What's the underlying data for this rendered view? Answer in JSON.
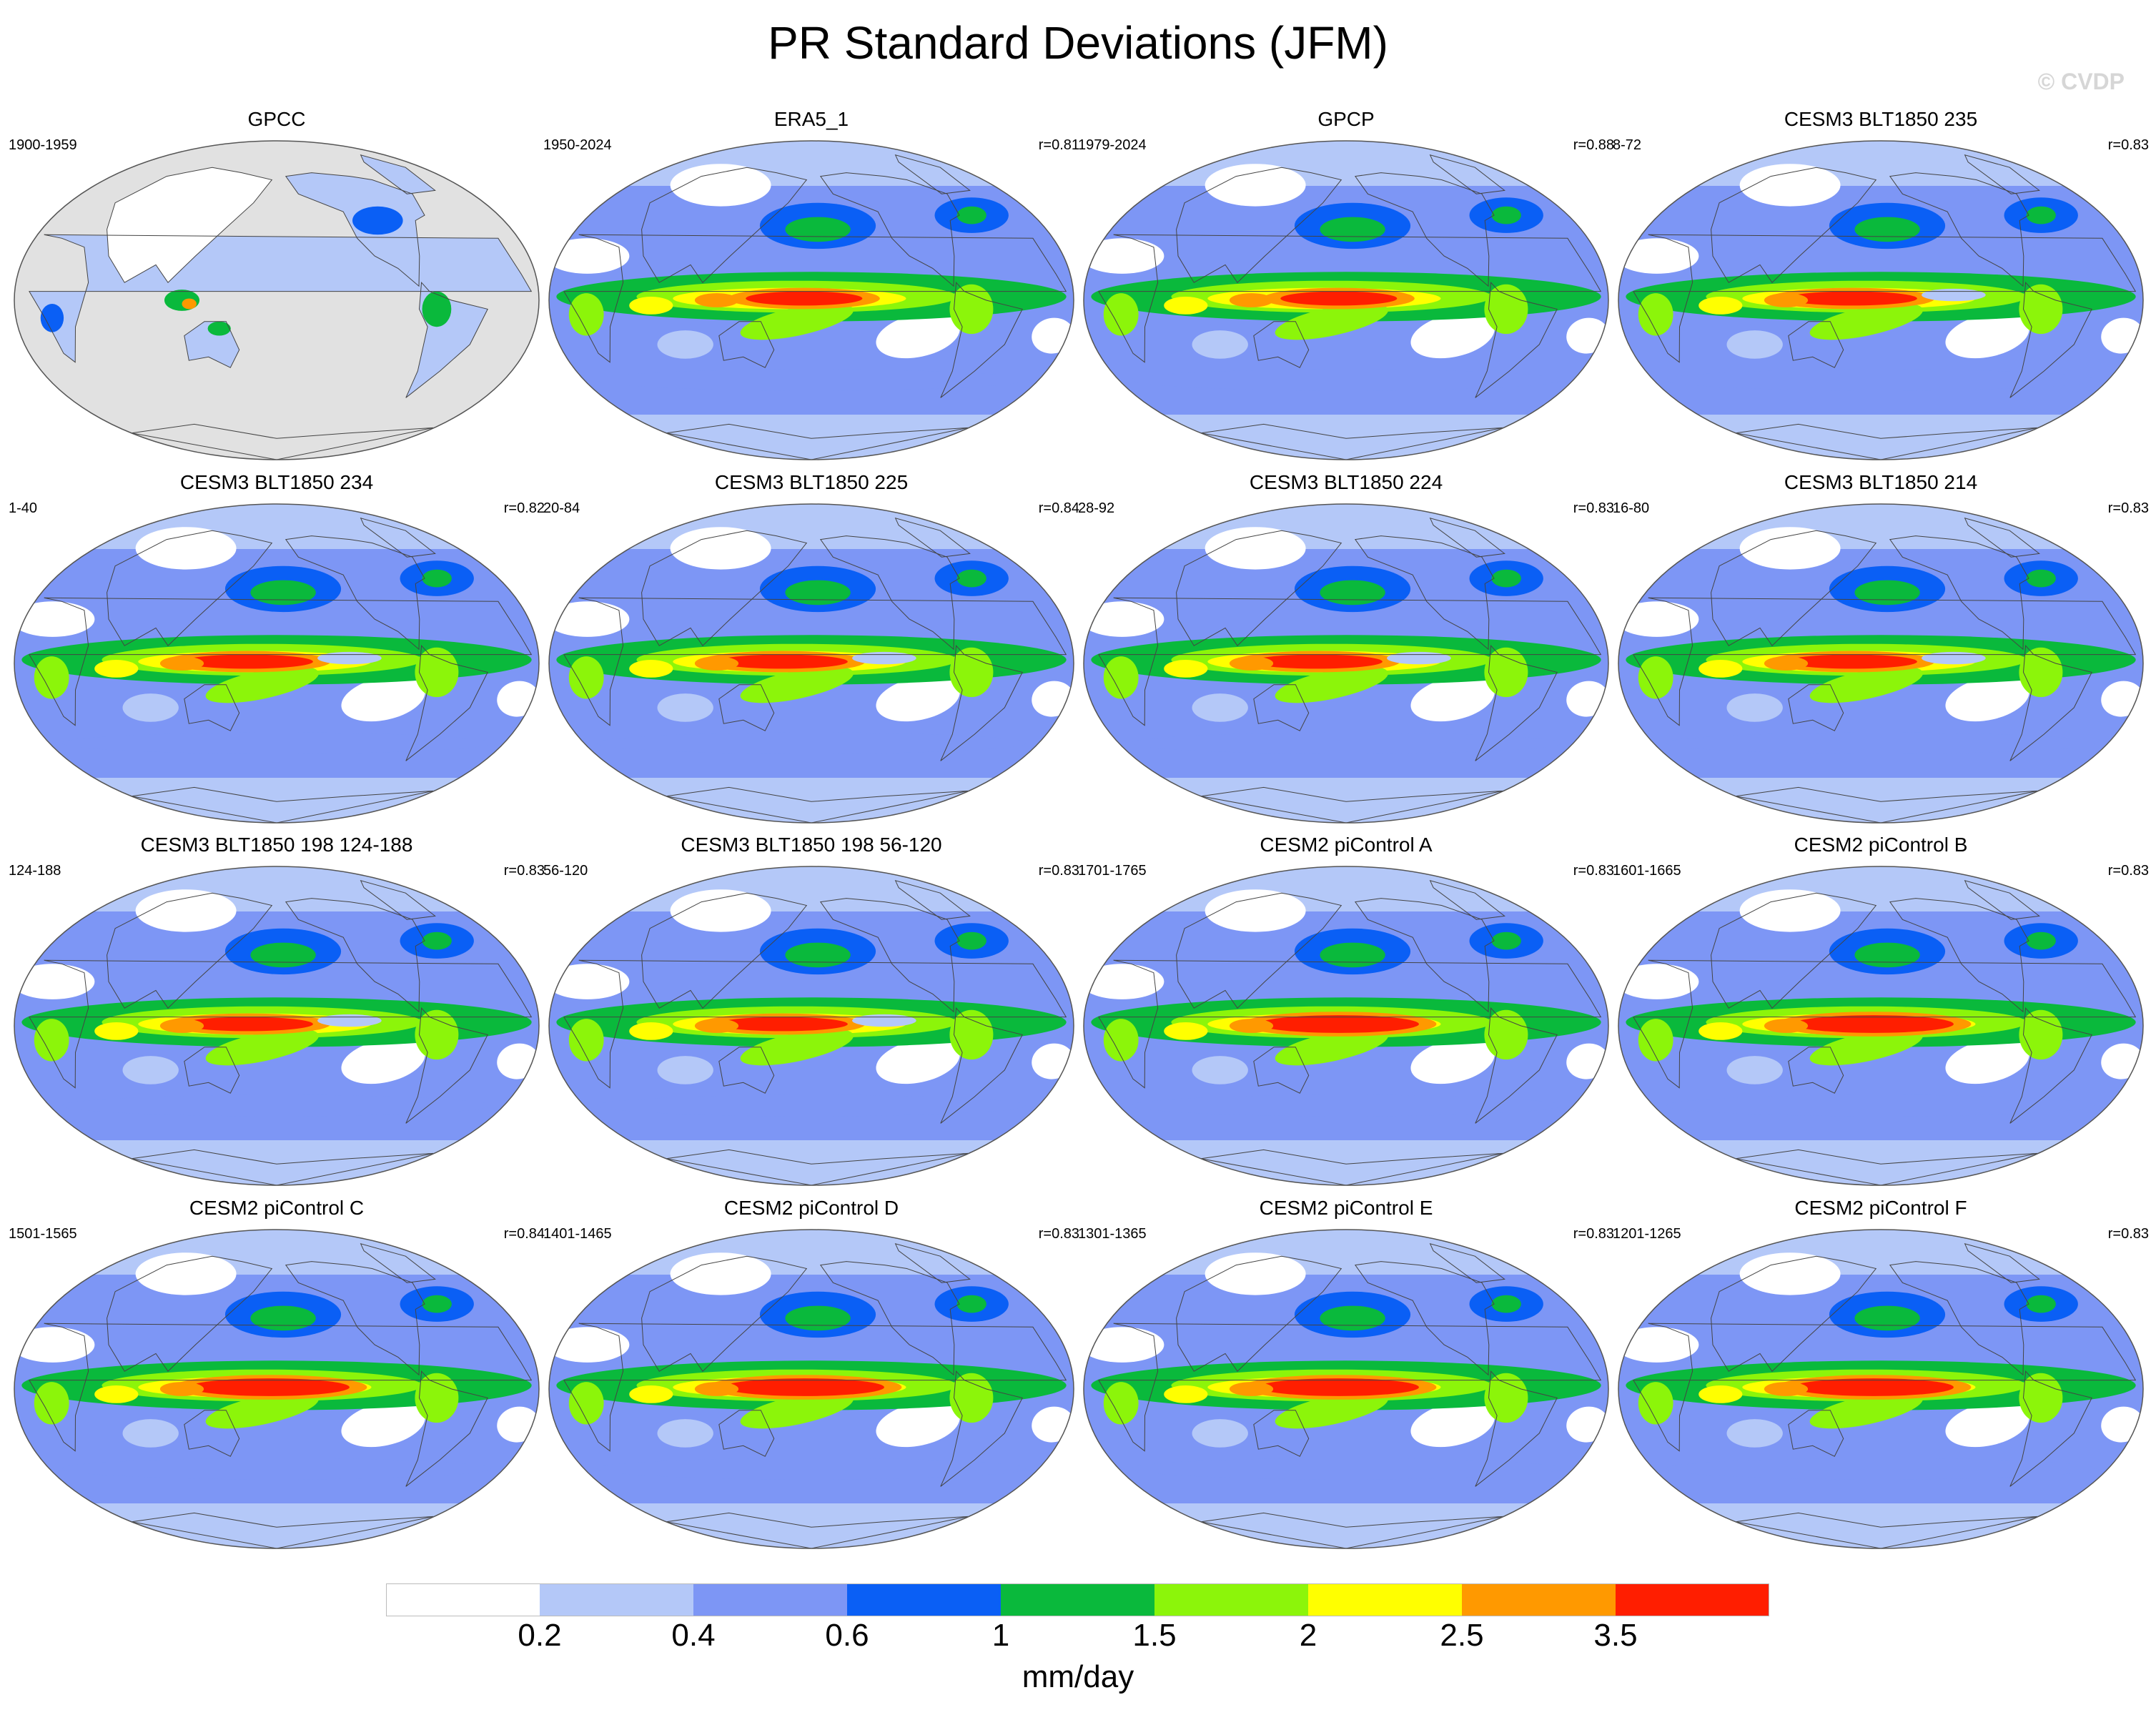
{
  "chart_data": {
    "type": "heatmap",
    "title": "PR Standard Deviations (JFM)",
    "watermark": "© CVDP",
    "projection": "robinson",
    "colorbar": {
      "boundaries": [
        "0.2",
        "0.4",
        "0.6",
        "1",
        "1.5",
        "2",
        "2.5",
        "3.5"
      ],
      "colors": [
        "#ffffff",
        "#b4c8f8",
        "#7d96f5",
        "#0a5ff5",
        "#0ab93c",
        "#8cf50a",
        "#ffff00",
        "#ff9900",
        "#ff1e00"
      ],
      "units": "mm/day"
    },
    "panels": [
      {
        "name": "GPCC",
        "period": "1900-1959",
        "r": "",
        "variant": "gpcc"
      },
      {
        "name": "ERA5_1",
        "period": "1950-2024",
        "r": "r=0.81",
        "variant": "obs"
      },
      {
        "name": "GPCP",
        "period": "1979-2024",
        "r": "r=0.88",
        "variant": "obs"
      },
      {
        "name": "CESM3 BLT1850 235",
        "period": "8-72",
        "r": "r=0.83",
        "variant": "cesm3"
      },
      {
        "name": "CESM3 BLT1850 234",
        "period": "1-40",
        "r": "r=0.82",
        "variant": "cesm3"
      },
      {
        "name": "CESM3 BLT1850 225",
        "period": "20-84",
        "r": "r=0.84",
        "variant": "cesm3"
      },
      {
        "name": "CESM3 BLT1850 224",
        "period": "28-92",
        "r": "r=0.83",
        "variant": "cesm3"
      },
      {
        "name": "CESM3 BLT1850 214",
        "period": "16-80",
        "r": "r=0.83",
        "variant": "cesm3"
      },
      {
        "name": "CESM3 BLT1850 198 124-188",
        "period": "124-188",
        "r": "r=0.83",
        "variant": "cesm3"
      },
      {
        "name": "CESM3 BLT1850 198 56-120",
        "period": "56-120",
        "r": "r=0.83",
        "variant": "cesm3"
      },
      {
        "name": "CESM2 piControl A",
        "period": "1701-1765",
        "r": "r=0.83",
        "variant": "cesm2"
      },
      {
        "name": "CESM2 piControl B",
        "period": "1601-1665",
        "r": "r=0.83",
        "variant": "cesm2"
      },
      {
        "name": "CESM2 piControl C",
        "period": "1501-1565",
        "r": "r=0.84",
        "variant": "cesm2"
      },
      {
        "name": "CESM2 piControl D",
        "period": "1401-1465",
        "r": "r=0.83",
        "variant": "cesm2"
      },
      {
        "name": "CESM2 piControl E",
        "period": "1301-1365",
        "r": "r=0.83",
        "variant": "cesm2"
      },
      {
        "name": "CESM2 piControl F",
        "period": "1201-1265",
        "r": "r=0.83",
        "variant": "cesm2"
      }
    ]
  }
}
